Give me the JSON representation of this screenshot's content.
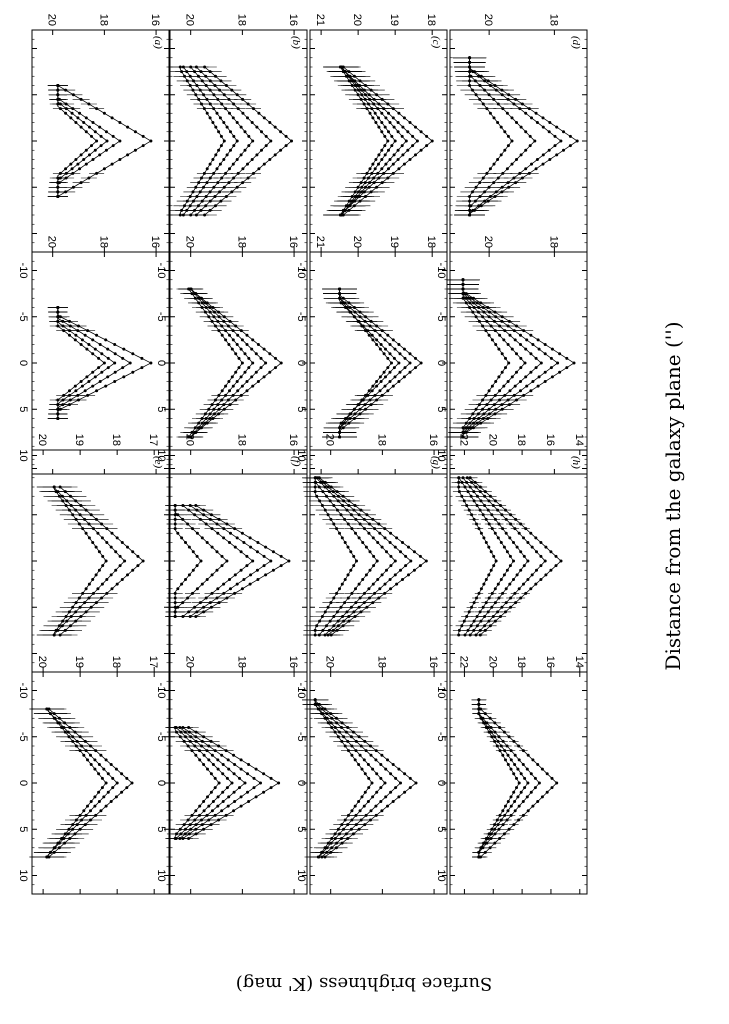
{
  "figure": {
    "ylabel": "Surface brightness (K' mag)",
    "xlabel": "Distance from the galaxy plane ('')"
  },
  "chart_data": {
    "type": "line",
    "xlabel": "Distance from the galaxy plane ('')",
    "ylabel": "Surface brightness (K' mag)",
    "xlim": [
      -12,
      12
    ],
    "x_ticks": [
      -10,
      -5,
      0,
      5,
      10
    ],
    "y_inverted": true,
    "panels": [
      {
        "label": "(a)",
        "ylim": [
          15.5,
          20.8
        ],
        "y_ticks": [
          16,
          18,
          20
        ],
        "x_extent": [
          -6,
          6
        ],
        "top": {
          "peaks": [
            16.2,
            17.4,
            17.9,
            18.3
          ],
          "slopes": [
            0.6,
            0.52,
            0.45,
            0.4
          ],
          "floor": 19.8
        },
        "bottom": {
          "peaks": [
            16.2,
            17.0,
            17.6,
            18.0
          ],
          "slopes": [
            0.7,
            0.58,
            0.5,
            0.45
          ],
          "floor": 19.8
        }
      },
      {
        "label": "(b)",
        "ylim": [
          15.5,
          20.8
        ],
        "y_ticks": [
          16,
          18,
          20
        ],
        "x_extent": [
          -8,
          8
        ],
        "top": {
          "peaks": [
            16.1,
            16.9,
            17.6,
            18.2,
            18.7
          ],
          "slopes": [
            0.42,
            0.36,
            0.3,
            0.26,
            0.22
          ],
          "floor": 20.4
        },
        "bottom": {
          "peaks": [
            16.5,
            17.1,
            17.6,
            18.0
          ],
          "slopes": [
            0.44,
            0.36,
            0.3,
            0.26
          ],
          "floor": 20.5
        }
      },
      {
        "label": "(c)",
        "ylim": [
          17.6,
          21.3
        ],
        "y_ticks": [
          18,
          19,
          20,
          21
        ],
        "x_extent": [
          -8,
          8
        ],
        "top": {
          "peaks": [
            18.0,
            18.4,
            18.7,
            19.0,
            19.2
          ],
          "slopes": [
            0.3,
            0.26,
            0.22,
            0.18,
            0.16
          ],
          "floor": 20.6
        },
        "bottom": {
          "peaks": [
            18.3,
            18.6,
            18.9,
            19.1
          ],
          "slopes": [
            0.3,
            0.27,
            0.24,
            0.2
          ],
          "floor": 20.5
        }
      },
      {
        "label": "(d)",
        "ylim": [
          17.0,
          21.2
        ],
        "y_ticks": [
          18,
          20
        ],
        "x_extent": [
          -9,
          8
        ],
        "top": {
          "peaks": [
            17.3,
            17.8,
            18.6,
            19.3
          ],
          "slopes": [
            0.42,
            0.36,
            0.28,
            0.22
          ],
          "floor": 20.6
        },
        "bottom": {
          "peaks": [
            17.4,
            17.9,
            18.4,
            18.9,
            19.4
          ],
          "slopes": [
            0.44,
            0.38,
            0.32,
            0.26,
            0.2
          ],
          "floor": 20.8
        }
      },
      {
        "label": "(e)",
        "ylim": [
          16.6,
          20.3
        ],
        "y_ticks": [
          17,
          18,
          19,
          20
        ],
        "x_extent": [
          -8,
          8
        ],
        "top": {
          "peaks": [
            17.3,
            17.8,
            18.3
          ],
          "slopes": [
            0.28,
            0.24,
            0.18
          ],
          "floor": 19.7
        },
        "bottom": {
          "peaks": [
            17.6,
            18.0,
            18.3
          ],
          "slopes": [
            0.28,
            0.24,
            0.2
          ],
          "floor": 19.9
        }
      },
      {
        "label": "(f)",
        "ylim": [
          15.5,
          20.8
        ],
        "y_ticks": [
          16,
          18,
          20
        ],
        "x_extent": [
          -6,
          6
        ],
        "top": {
          "peaks": [
            16.2,
            16.9,
            17.6,
            18.6,
            19.6
          ],
          "slopes": [
            0.6,
            0.52,
            0.45,
            0.38,
            0.3
          ],
          "floor": 20.6
        },
        "bottom": {
          "peaks": [
            16.6,
            17.3,
            17.9,
            18.4,
            18.9
          ],
          "slopes": [
            0.58,
            0.5,
            0.42,
            0.36,
            0.3
          ],
          "floor": 20.6
        }
      },
      {
        "label": "(g)",
        "ylim": [
          15.5,
          20.8
        ],
        "y_ticks": [
          16,
          18,
          20
        ],
        "x_extent": [
          -9,
          8
        ],
        "top": {
          "peaks": [
            16.3,
            16.9,
            17.5,
            18.2,
            19.0
          ],
          "slopes": [
            0.46,
            0.4,
            0.34,
            0.28,
            0.22
          ],
          "floor": 20.6
        },
        "bottom": {
          "peaks": [
            16.7,
            17.3,
            17.9,
            18.4
          ],
          "slopes": [
            0.44,
            0.38,
            0.32,
            0.26
          ],
          "floor": 20.6
        }
      },
      {
        "label": "(h)",
        "ylim": [
          13.5,
          23.0
        ],
        "y_ticks": [
          14,
          16,
          18,
          20,
          22
        ],
        "x_extent": [
          -9,
          8
        ],
        "top": {
          "peaks": [
            15.3,
            16.4,
            17.6,
            18.6,
            19.8
          ],
          "slopes": [
            0.7,
            0.6,
            0.5,
            0.42,
            0.34
          ],
          "floor": 22.4
        },
        "bottom": {
          "peaks": [
            15.6,
            16.8,
            17.6,
            18.2
          ],
          "slopes": [
            0.66,
            0.56,
            0.46,
            0.38
          ],
          "floor": 21.0
        }
      }
    ]
  }
}
